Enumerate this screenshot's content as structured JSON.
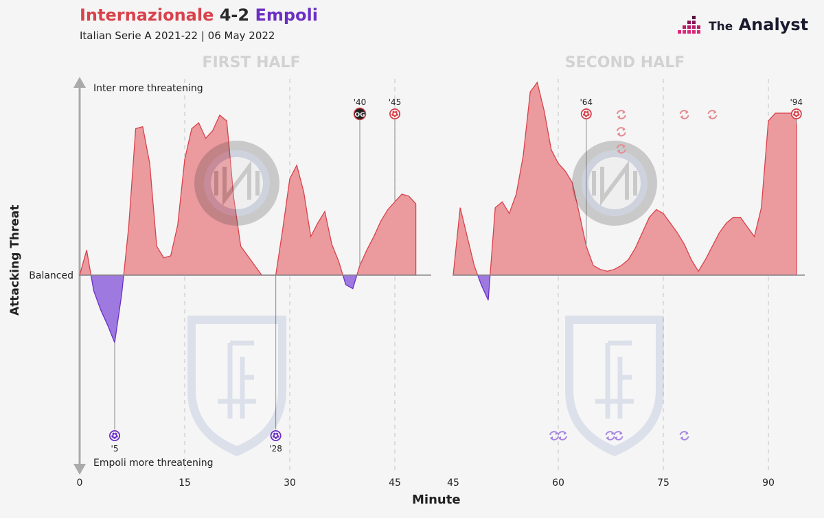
{
  "header": {
    "home_team": "Internazionale",
    "score": "4-2",
    "away_team": "Empoli",
    "subtitle": "Italian Serie A 2021-22 | 06 May 2022",
    "brand": "The Analyst",
    "brand_prefix": "The",
    "brand_main": "Analyst"
  },
  "colors": {
    "home": "#d8424b",
    "home_fill": "#eb9a9e",
    "away": "#6b2fc4",
    "away_fill": "#9d79e0",
    "background": "#f5f5f5"
  },
  "chart_data": {
    "type": "area",
    "ylabel": "Attacking Threat",
    "xlabel": "Minute",
    "ylim": [
      -100,
      100
    ],
    "y_annotations": {
      "top": "Inter more threatening",
      "balanced": "Balanced",
      "bottom": "Empoli more threatening"
    },
    "panels": [
      {
        "title": "FIRST HALF",
        "xlim": [
          0,
          50
        ],
        "ticks": [
          0,
          15,
          30,
          45
        ],
        "tick_labels": [
          "0",
          "15",
          "30",
          "45"
        ],
        "series": {
          "x": [
            0,
            1,
            2,
            3,
            4,
            5,
            6,
            7,
            8,
            9,
            10,
            11,
            12,
            13,
            14,
            15,
            16,
            17,
            18,
            19,
            20,
            21,
            22,
            23,
            24,
            25,
            26,
            27,
            28,
            29,
            30,
            31,
            32,
            33,
            34,
            35,
            36,
            37,
            38,
            39,
            40,
            41,
            42,
            43,
            44,
            45,
            46,
            47,
            48
          ],
          "y": [
            0,
            13,
            -8,
            -18,
            -26,
            -35,
            -10,
            25,
            76,
            77,
            58,
            15,
            9,
            10,
            26,
            60,
            76,
            79,
            71,
            75,
            83,
            80,
            40,
            15,
            10,
            5,
            0,
            0,
            0,
            24,
            50,
            57,
            43,
            20,
            27,
            33,
            16,
            7,
            -5,
            -7,
            5,
            13,
            20,
            28,
            34,
            38,
            42,
            41,
            37
          ]
        },
        "goal_markers": [
          {
            "team": "home",
            "minute": 40,
            "label": "'40",
            "own_goal": true,
            "og_label": "OG"
          },
          {
            "team": "home",
            "minute": 45,
            "label": "'45",
            "own_goal": false
          },
          {
            "team": "away",
            "minute": 5,
            "label": "'5",
            "own_goal": false
          },
          {
            "team": "away",
            "minute": 28,
            "label": "'28",
            "own_goal": false
          }
        ],
        "substitutions": []
      },
      {
        "title": "SECOND HALF",
        "xlim": [
          45,
          95
        ],
        "ticks": [
          45,
          60,
          75,
          90
        ],
        "tick_labels": [
          "45",
          "60",
          "75",
          "90"
        ],
        "series": {
          "x": [
            45,
            46,
            47,
            48,
            49,
            50,
            51,
            52,
            53,
            54,
            55,
            56,
            57,
            58,
            59,
            60,
            61,
            62,
            63,
            64,
            65,
            66,
            67,
            68,
            69,
            70,
            71,
            72,
            73,
            74,
            75,
            76,
            77,
            78,
            79,
            80,
            81,
            82,
            83,
            84,
            85,
            86,
            87,
            88,
            89,
            90,
            91,
            92,
            93,
            94
          ],
          "y": [
            0,
            35,
            20,
            5,
            -5,
            -13,
            35,
            38,
            32,
            42,
            62,
            95,
            100,
            85,
            65,
            58,
            54,
            48,
            32,
            15,
            5,
            3,
            2,
            3,
            5,
            8,
            14,
            22,
            30,
            34,
            32,
            27,
            22,
            16,
            8,
            2,
            8,
            15,
            22,
            27,
            30,
            30,
            25,
            20,
            35,
            80,
            84,
            84,
            84,
            84
          ]
        },
        "goal_markers": [
          {
            "team": "home",
            "minute": 64,
            "label": "'64",
            "own_goal": false
          },
          {
            "team": "home",
            "minute": 94,
            "label": "'94",
            "own_goal": false
          }
        ],
        "substitutions": [
          {
            "team": "home",
            "minute": 69,
            "count": 3
          },
          {
            "team": "home",
            "minute": 78,
            "count": 1
          },
          {
            "team": "home",
            "minute": 82,
            "count": 1
          },
          {
            "team": "away",
            "minute": 60,
            "count": 2
          },
          {
            "team": "away",
            "minute": 68,
            "count": 2
          },
          {
            "team": "away",
            "minute": 78,
            "count": 1
          }
        ]
      }
    ]
  }
}
